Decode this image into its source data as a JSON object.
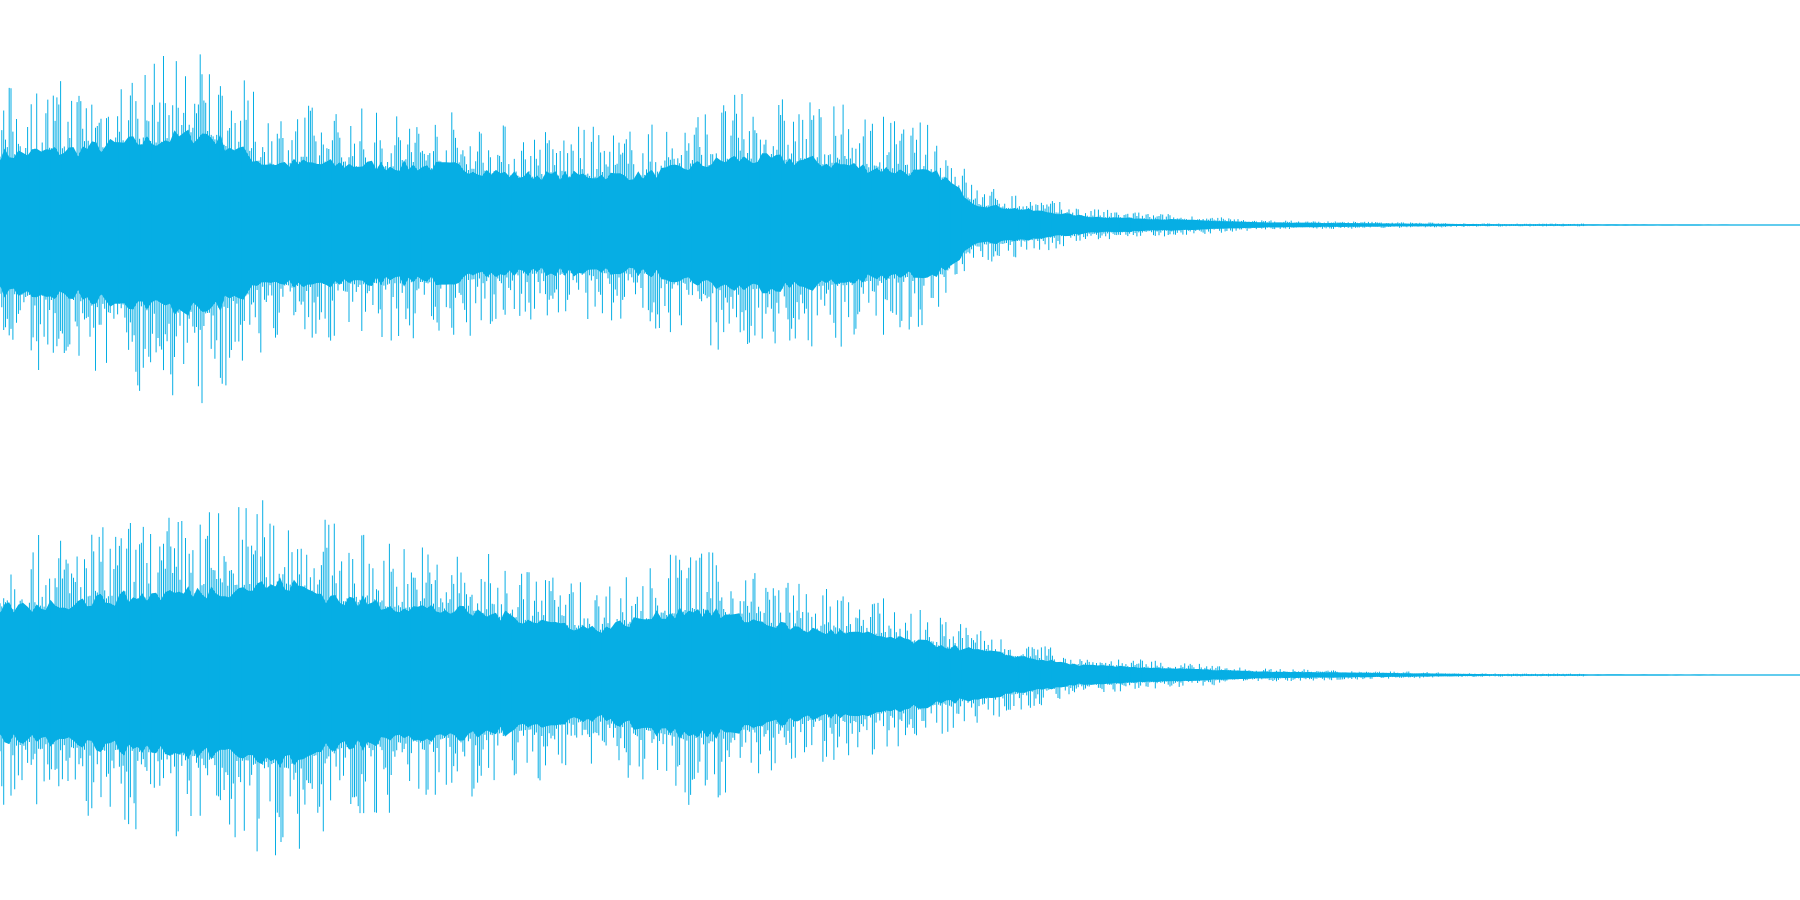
{
  "waveform": {
    "color": "#06aee4"
  }
}
